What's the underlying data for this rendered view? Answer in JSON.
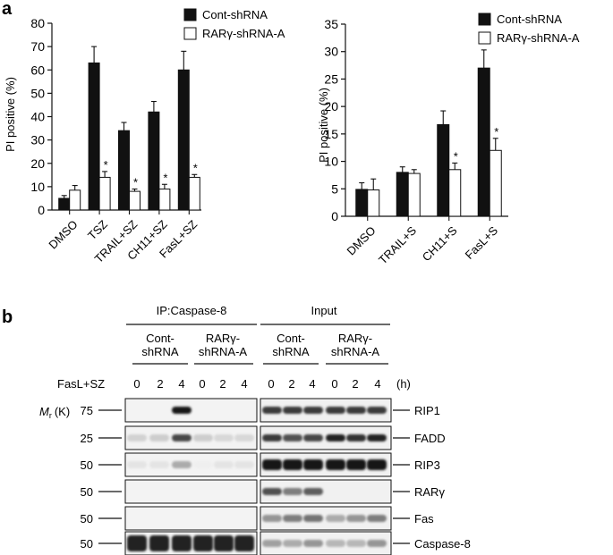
{
  "panel_a": {
    "label": "a",
    "charts": [
      {
        "type": "bar",
        "ylabel": "PI positive (%)",
        "ylim": [
          0,
          80
        ],
        "yticks": [
          0,
          10,
          20,
          30,
          40,
          50,
          60,
          70,
          80
        ],
        "categories": [
          "DMSO",
          "TSZ",
          "TRAIL+SZ",
          "CH11+SZ",
          "FasL+SZ"
        ],
        "legend": [
          "Cont-shRNA",
          "RARγ-shRNA-A"
        ],
        "legend_position": "top-right",
        "series": [
          {
            "name": "Cont-shRNA",
            "color": "#111111",
            "values": [
              5,
              63,
              34,
              42,
              60
            ],
            "errors": [
              1.2,
              7,
              3.5,
              4.5,
              8
            ]
          },
          {
            "name": "RARγ-shRNA-A",
            "color": "#ffffff",
            "values": [
              8.5,
              14,
              8,
              9,
              14
            ],
            "errors": [
              2,
              2.5,
              1,
              2,
              1.2
            ]
          }
        ],
        "significance": [
          "",
          "*",
          "*",
          "*",
          "*"
        ]
      },
      {
        "type": "bar",
        "ylabel": "PI positive (%)",
        "ylim": [
          0,
          35
        ],
        "yticks": [
          0,
          5,
          10,
          15,
          20,
          25,
          30,
          35
        ],
        "categories": [
          "DMSO",
          "TRAIL+S",
          "CH11+S",
          "FasL+S"
        ],
        "legend": [
          "Cont-shRNA",
          "RARγ-shRNA-A"
        ],
        "legend_position": "top-right",
        "series": [
          {
            "name": "Cont-shRNA",
            "color": "#111111",
            "values": [
              4.9,
              8,
              16.7,
              27
            ],
            "errors": [
              1.2,
              1,
              2.5,
              3.3
            ]
          },
          {
            "name": "RARγ-shRNA-A",
            "color": "#ffffff",
            "values": [
              4.8,
              7.8,
              8.5,
              12
            ],
            "errors": [
              2,
              0.7,
              1.2,
              2.2
            ]
          }
        ],
        "significance": [
          "",
          "",
          "*",
          "*"
        ]
      }
    ]
  },
  "panel_b": {
    "label": "b",
    "ip_title": "IP:Caspase-8",
    "input_title": "Input",
    "groups": [
      {
        "line1": "Cont-",
        "line2": "shRNA"
      },
      {
        "line1": "RARγ-",
        "line2": "shRNA-A"
      },
      {
        "line1": "Cont-",
        "line2": "shRNA"
      },
      {
        "line1": "RARγ-",
        "line2": "shRNA-A"
      }
    ],
    "treatment": "FasL+SZ",
    "timepoints": [
      "0",
      "2",
      "4",
      "0",
      "2",
      "4",
      "0",
      "2",
      "4",
      "0",
      "2",
      "4"
    ],
    "time_unit": "(h)",
    "mr_label": "M",
    "mr_sub": "r",
    "mr_unit": "(K)",
    "rows": [
      {
        "marker": "75",
        "protein": "RIP1"
      },
      {
        "marker": "25",
        "protein": "FADD"
      },
      {
        "marker": "50",
        "protein": "RIP3"
      },
      {
        "marker": "50",
        "protein": "RARγ"
      },
      {
        "marker": "50",
        "protein": "Fas"
      },
      {
        "marker": "50",
        "protein": "Caspase-8"
      }
    ]
  }
}
